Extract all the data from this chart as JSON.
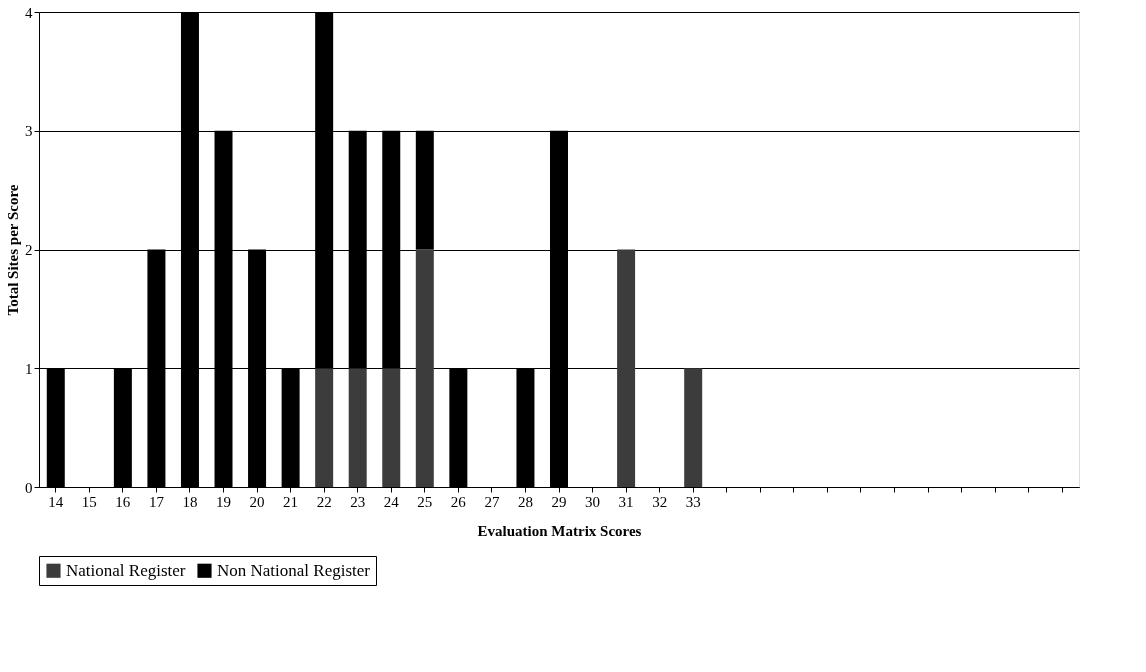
{
  "chart_data": {
    "type": "bar",
    "stacked": true,
    "xlabel": "Evaluation Matrix Scores",
    "ylabel": "Total Sites per Score",
    "categories": [
      "14",
      "15",
      "16",
      "17",
      "18",
      "19",
      "20",
      "21",
      "22",
      "23",
      "24",
      "25",
      "26",
      "27",
      "28",
      "29",
      "30",
      "31",
      "32",
      "33",
      null,
      null,
      null,
      null,
      null,
      null,
      null,
      null,
      null,
      null,
      null
    ],
    "series": [
      {
        "name": "National Register",
        "color": "#3c3c3c",
        "values": [
          0,
          0,
          0,
          0,
          0,
          0,
          0,
          0,
          1,
          1,
          1,
          2,
          0,
          0,
          0,
          0,
          0,
          2,
          0,
          1,
          0,
          0,
          0,
          0,
          0,
          0,
          0,
          0,
          0,
          0,
          0
        ]
      },
      {
        "name": "Non National Register",
        "color": "#000000",
        "values": [
          1,
          0,
          1,
          2,
          4,
          3,
          2,
          1,
          3,
          2,
          2,
          1,
          1,
          0,
          1,
          3,
          0,
          0,
          0,
          0,
          0,
          0,
          0,
          0,
          0,
          0,
          0,
          0,
          0,
          0,
          0
        ]
      }
    ],
    "ylim": [
      0,
      4
    ],
    "yticks": [
      0,
      1,
      2,
      3,
      4
    ],
    "grid": "y",
    "legend": "bottom"
  }
}
